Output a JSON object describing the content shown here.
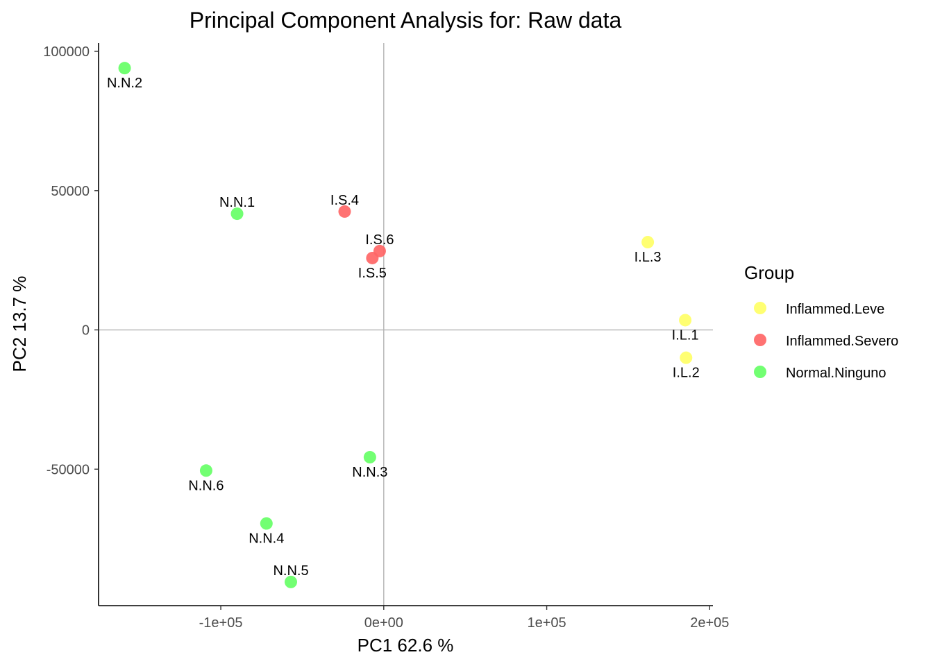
{
  "chart_data": {
    "type": "scatter",
    "title": "Principal Component Analysis for:  Raw data",
    "xlabel": "PC1 62.6 %",
    "ylabel": "PC2 13.7 %",
    "xlim": [
      -175000,
      202000
    ],
    "ylim": [
      -99000,
      103000
    ],
    "x_ticks": [
      -100000,
      0,
      100000,
      200000
    ],
    "x_tick_labels": [
      "-1e+05",
      "0e+00",
      "1e+05",
      "2e+05"
    ],
    "y_ticks": [
      -50000,
      0,
      50000,
      100000
    ],
    "y_tick_labels": [
      "-50000",
      "0",
      "50000",
      "100000"
    ],
    "reference_lines": {
      "x": 0,
      "y": 0
    },
    "grid": false,
    "legend": {
      "title": "Group",
      "position": "right",
      "entries": [
        {
          "name": "Inflammed.Leve",
          "color": "#FFFF66"
        },
        {
          "name": "Inflammed.Severo",
          "color": "#FF6666"
        },
        {
          "name": "Normal.Ninguno",
          "color": "#66FF66"
        }
      ]
    },
    "points": [
      {
        "label": "N.N.2",
        "group": "Normal.Ninguno",
        "x": -159000,
        "y": 94000,
        "label_pos": "below"
      },
      {
        "label": "N.N.1",
        "group": "Normal.Ninguno",
        "x": -90000,
        "y": 41700,
        "label_pos": "above"
      },
      {
        "label": "I.S.4",
        "group": "Inflammed.Severo",
        "x": -24000,
        "y": 42500,
        "label_pos": "above"
      },
      {
        "label": "I.S.6",
        "group": "Inflammed.Severo",
        "x": -2500,
        "y": 28300,
        "label_pos": "above"
      },
      {
        "label": "I.S.5",
        "group": "Inflammed.Severo",
        "x": -7000,
        "y": 25800,
        "label_pos": "below"
      },
      {
        "label": "I.L.3",
        "group": "Inflammed.Leve",
        "x": 162000,
        "y": 31500,
        "label_pos": "below"
      },
      {
        "label": "I.L.1",
        "group": "Inflammed.Leve",
        "x": 185000,
        "y": 3500,
        "label_pos": "below"
      },
      {
        "label": "I.L.2",
        "group": "Inflammed.Leve",
        "x": 185500,
        "y": -10000,
        "label_pos": "below"
      },
      {
        "label": "N.N.3",
        "group": "Normal.Ninguno",
        "x": -8500,
        "y": -45700,
        "label_pos": "below"
      },
      {
        "label": "N.N.6",
        "group": "Normal.Ninguno",
        "x": -109000,
        "y": -50500,
        "label_pos": "below"
      },
      {
        "label": "N.N.4",
        "group": "Normal.Ninguno",
        "x": -72000,
        "y": -69500,
        "label_pos": "below"
      },
      {
        "label": "N.N.5",
        "group": "Normal.Ninguno",
        "x": -57000,
        "y": -90500,
        "label_pos": "above"
      }
    ]
  }
}
